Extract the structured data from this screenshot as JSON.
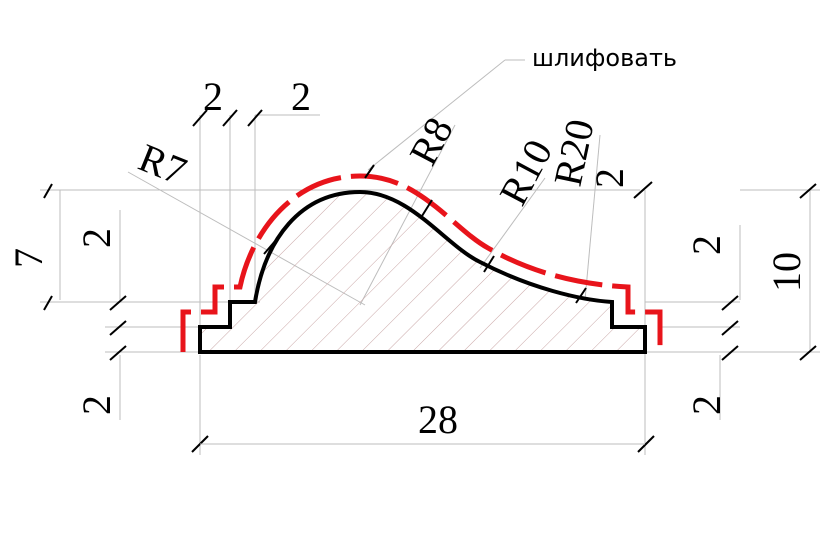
{
  "note_label": "шлифовать",
  "dims": {
    "top_step_left": "2",
    "top_step_right": "2",
    "left_height_total": "7",
    "left_height_step": "2",
    "bottom_left": "2",
    "right_height_step": "2",
    "right_height_total": "10",
    "bottom_right": "2",
    "top_right_step": "2",
    "width": "28"
  },
  "radii": {
    "r7": "R7",
    "r8": "R8",
    "r10": "R10",
    "r20": "R20"
  },
  "colors": {
    "profile": "#000000",
    "finish_line": "#e8141b",
    "hatch": "#c9a6a6",
    "extension": "#bdbdbd"
  }
}
